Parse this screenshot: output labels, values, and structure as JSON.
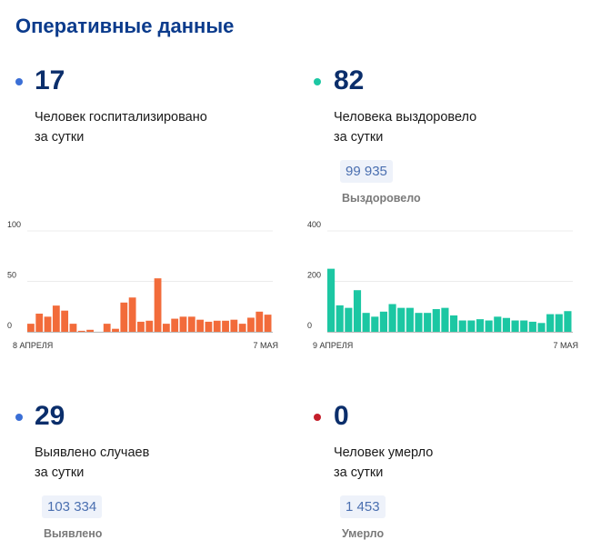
{
  "title": "Оперативные данные",
  "colors": {
    "hospital": "#f26b3a",
    "recovered": "#1cc7a3",
    "cases": "#3b6fd6",
    "deaths": "#c41e2a",
    "number": "#0b2e6b"
  },
  "hospitalized": {
    "value": "17",
    "line1": "Человек госпитализировано",
    "line2": "за сутки"
  },
  "recovered": {
    "value": "82",
    "line1": "Человека выздоровело",
    "line2": "за сутки",
    "total": "99 935",
    "total_label": "Выздоровело"
  },
  "cases": {
    "value": "29",
    "line1": "Выявлено случаев",
    "line2": "за сутки",
    "total": "103 334",
    "total_label": "Выявлено"
  },
  "deaths": {
    "value": "0",
    "line1": "Человек умерло",
    "line2": "за сутки",
    "total": "1 453",
    "total_label": "Умерло"
  },
  "chart_data": [
    {
      "type": "bar",
      "ylim": [
        0,
        100
      ],
      "yticks": [
        "100",
        "50",
        "0"
      ],
      "x_start_label": "8 АПРЕЛЯ",
      "x_end_label": "7 МАЯ",
      "color": "#f26b3a",
      "values": [
        8,
        18,
        15,
        26,
        21,
        8,
        1,
        2,
        0,
        8,
        3,
        29,
        34,
        10,
        11,
        53,
        8,
        13,
        15,
        15,
        12,
        10,
        11,
        11,
        12,
        8,
        14,
        20,
        17
      ]
    },
    {
      "type": "bar",
      "ylim": [
        0,
        400
      ],
      "yticks": [
        "400",
        "200",
        "0"
      ],
      "x_start_label": "9 АПРЕЛЯ",
      "x_end_label": "7 МАЯ",
      "color": "#1cc7a3",
      "values": [
        250,
        105,
        95,
        165,
        75,
        60,
        80,
        110,
        95,
        95,
        75,
        75,
        90,
        95,
        65,
        45,
        45,
        50,
        45,
        60,
        55,
        45,
        45,
        40,
        35,
        70,
        70,
        82
      ]
    }
  ]
}
